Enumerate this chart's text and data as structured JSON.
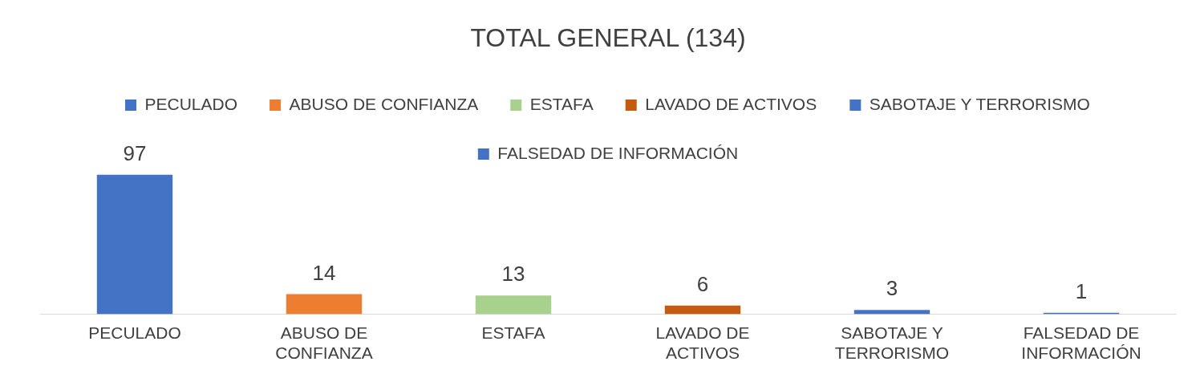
{
  "chart_data": {
    "type": "bar",
    "title": "TOTAL GENERAL (134)",
    "categories": [
      "PECULADO",
      "ABUSO DE CONFIANZA",
      "ESTAFA",
      "LAVADO DE ACTIVOS",
      "SABOTAJE Y TERRORISMO",
      "FALSEDAD DE INFORMACIÓN"
    ],
    "series": [
      {
        "name": "PECULADO",
        "color": "#4472c4",
        "values": [
          97,
          null,
          null,
          null,
          null,
          null
        ]
      },
      {
        "name": "ABUSO DE CONFIANZA",
        "color": "#ed7d31",
        "values": [
          null,
          14,
          null,
          null,
          null,
          null
        ]
      },
      {
        "name": "ESTAFA",
        "color": "#a9d18e",
        "values": [
          null,
          null,
          13,
          null,
          null,
          null
        ]
      },
      {
        "name": "LAVADO DE ACTIVOS",
        "color": "#c55a11",
        "values": [
          null,
          null,
          null,
          6,
          null,
          null
        ]
      },
      {
        "name": "SABOTAJE Y TERRORISMO",
        "color": "#4472c4",
        "values": [
          null,
          null,
          null,
          null,
          3,
          null
        ]
      },
      {
        "name": "FALSEDAD DE INFORMACIÓN",
        "color": "#4472c4",
        "values": [
          null,
          null,
          null,
          null,
          null,
          1
        ]
      }
    ],
    "data_labels": true,
    "legend": "top",
    "grid": false,
    "tick_labels": "x"
  }
}
